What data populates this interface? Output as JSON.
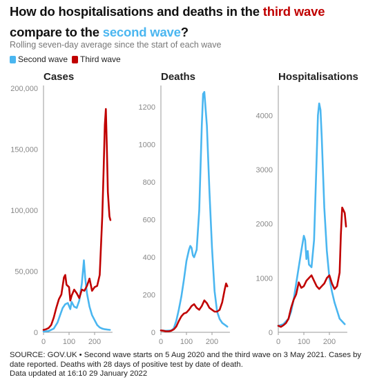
{
  "header": {
    "title_part1": "How do hospitalisations and deaths in the ",
    "title_third": "third wave",
    "title_part2": " compare to the ",
    "title_second": "second wave",
    "title_part3": "?",
    "subtitle": "Rolling seven-day average since the start of each wave"
  },
  "legend": {
    "second_label": "Second wave",
    "third_label": "Third wave"
  },
  "colors": {
    "second_wave": "#4ab6f0",
    "third_wave": "#c00000",
    "axis": "#999999",
    "tick_text": "#888888"
  },
  "footer": {
    "line1": "SOURCE: GOV.UK • Second wave starts on 5 Aug 2020 and the third wave on 3 May 2021. Cases by",
    "line2": "date reported. Deaths with 28 days of positive test by date of death.",
    "line3": "Data updated at 16:10 29 January 2022"
  },
  "chart_data": [
    {
      "type": "line",
      "title": "Cases",
      "xticks": [
        0,
        100,
        200
      ],
      "xlim": [
        0,
        270
      ],
      "ylim": [
        0,
        200000
      ],
      "yticks": [
        0,
        50000,
        100000,
        150000,
        200000
      ],
      "ytick_labels": [
        "0",
        "50,000",
        "100,000",
        "150,000",
        "200,000"
      ],
      "series": [
        {
          "name": "Second wave",
          "x": [
            0,
            20,
            40,
            55,
            65,
            75,
            85,
            95,
            105,
            110,
            120,
            130,
            140,
            150,
            158,
            163,
            170,
            180,
            190,
            200,
            210,
            220,
            230,
            240,
            250,
            260
          ],
          "y": [
            600,
            1000,
            3000,
            8000,
            14000,
            20000,
            23000,
            24000,
            19000,
            25000,
            21000,
            20000,
            26000,
            40000,
            59000,
            45000,
            32000,
            21000,
            14000,
            10000,
            6000,
            4000,
            3000,
            2500,
            2200,
            2000
          ]
        },
        {
          "name": "Third wave",
          "x": [
            0,
            10,
            20,
            30,
            40,
            50,
            60,
            70,
            80,
            85,
            90,
            100,
            105,
            110,
            120,
            130,
            140,
            150,
            160,
            170,
            180,
            190,
            200,
            210,
            220,
            230,
            235,
            240,
            244,
            248,
            252,
            258,
            262
          ],
          "y": [
            2000,
            2500,
            3500,
            6000,
            12000,
            20000,
            27000,
            31000,
            45000,
            47000,
            39000,
            37000,
            26000,
            30000,
            35000,
            32000,
            28000,
            35000,
            34000,
            38000,
            44000,
            34000,
            37000,
            38000,
            47000,
            95000,
            130000,
            170000,
            183000,
            150000,
            115000,
            95000,
            92000
          ]
        }
      ]
    },
    {
      "type": "line",
      "title": "Deaths",
      "xticks": [
        0,
        100,
        200
      ],
      "xlim": [
        0,
        270
      ],
      "ylim": [
        0,
        1300
      ],
      "yticks": [
        0,
        200,
        400,
        600,
        800,
        1000,
        1200
      ],
      "ytick_labels": [
        "0",
        "200",
        "400",
        "600",
        "800",
        "1000",
        "1200"
      ],
      "series": [
        {
          "name": "Second wave",
          "x": [
            0,
            20,
            40,
            50,
            60,
            70,
            80,
            90,
            100,
            110,
            115,
            120,
            125,
            130,
            140,
            150,
            160,
            165,
            170,
            180,
            190,
            200,
            210,
            220,
            230,
            240,
            250,
            260
          ],
          "y": [
            10,
            8,
            10,
            20,
            60,
            120,
            190,
            280,
            380,
            440,
            460,
            450,
            410,
            400,
            440,
            650,
            1100,
            1270,
            1280,
            1100,
            750,
            450,
            220,
            110,
            70,
            50,
            40,
            30
          ]
        },
        {
          "name": "Third wave",
          "x": [
            0,
            10,
            20,
            30,
            40,
            50,
            60,
            70,
            80,
            90,
            100,
            110,
            120,
            130,
            140,
            150,
            160,
            170,
            180,
            190,
            200,
            210,
            220,
            230,
            240,
            250,
            255,
            260
          ],
          "y": [
            10,
            8,
            5,
            5,
            8,
            15,
            30,
            60,
            85,
            100,
            105,
            120,
            140,
            150,
            130,
            120,
            140,
            170,
            155,
            130,
            120,
            110,
            110,
            120,
            160,
            230,
            260,
            245
          ]
        }
      ]
    },
    {
      "type": "line",
      "title": "Hospitalisations",
      "xticks": [
        0,
        100,
        200
      ],
      "xlim": [
        0,
        270
      ],
      "ylim": [
        0,
        4500
      ],
      "yticks": [
        0,
        1000,
        2000,
        3000,
        4000
      ],
      "ytick_labels": [
        "0",
        "1000",
        "2000",
        "3000",
        "4000"
      ],
      "series": [
        {
          "name": "Second wave",
          "x": [
            0,
            20,
            40,
            50,
            60,
            70,
            80,
            90,
            100,
            105,
            110,
            115,
            120,
            130,
            140,
            150,
            155,
            160,
            165,
            170,
            180,
            190,
            200,
            210,
            220,
            230,
            240,
            250,
            260
          ],
          "y": [
            120,
            150,
            250,
            380,
            600,
            900,
            1200,
            1500,
            1780,
            1700,
            1350,
            1500,
            1250,
            1200,
            1700,
            3200,
            4000,
            4220,
            4100,
            3600,
            2300,
            1500,
            1000,
            750,
            550,
            400,
            250,
            200,
            150
          ]
        },
        {
          "name": "Third wave",
          "x": [
            0,
            10,
            20,
            30,
            40,
            50,
            60,
            70,
            80,
            90,
            100,
            110,
            120,
            130,
            140,
            150,
            160,
            170,
            180,
            190,
            200,
            210,
            220,
            230,
            240,
            245,
            250,
            255,
            260,
            265
          ],
          "y": [
            120,
            100,
            130,
            170,
            250,
            450,
            600,
            700,
            920,
            820,
            850,
            950,
            1000,
            1050,
            950,
            850,
            800,
            850,
            900,
            1000,
            1050,
            900,
            800,
            850,
            1100,
            1800,
            2300,
            2250,
            2200,
            1950
          ]
        }
      ]
    }
  ]
}
